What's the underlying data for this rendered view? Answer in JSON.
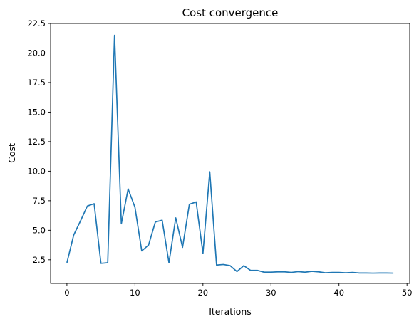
{
  "chart_data": {
    "type": "line",
    "title": "Cost convergence",
    "xlabel": "Iterations",
    "ylabel": "Cost",
    "xlim": [
      -2.4,
      50.4
    ],
    "ylim": [
      0.5,
      22.5
    ],
    "xticks": [
      0,
      10,
      20,
      30,
      40,
      50
    ],
    "yticks": [
      2.5,
      5.0,
      7.5,
      10.0,
      12.5,
      15.0,
      17.5,
      20.0,
      22.5
    ],
    "xtick_labels": [
      "0",
      "10",
      "20",
      "30",
      "40",
      "50"
    ],
    "ytick_labels": [
      "2.5",
      "5.0",
      "7.5",
      "10.0",
      "12.5",
      "15.0",
      "17.5",
      "20.0",
      "22.5"
    ],
    "grid": false,
    "series": [
      {
        "color": "#1f77b4",
        "x": [
          0,
          1,
          2,
          3,
          4,
          5,
          6,
          7,
          8,
          9,
          10,
          11,
          12,
          13,
          14,
          15,
          16,
          17,
          18,
          19,
          20,
          21,
          22,
          23,
          24,
          25,
          26,
          27,
          28,
          29,
          30,
          31,
          32,
          33,
          34,
          35,
          36,
          37,
          38,
          39,
          40,
          41,
          42,
          43,
          44,
          45,
          46,
          47,
          48
        ],
        "values": [
          2.25,
          4.6,
          5.8,
          7.05,
          7.25,
          2.2,
          2.25,
          21.5,
          5.55,
          8.5,
          6.95,
          3.25,
          3.75,
          5.7,
          5.85,
          2.25,
          6.05,
          3.55,
          7.2,
          7.4,
          3.05,
          9.95,
          2.05,
          2.1,
          2.0,
          1.5,
          2.0,
          1.6,
          1.6,
          1.45,
          1.45,
          1.48,
          1.48,
          1.43,
          1.5,
          1.45,
          1.52,
          1.48,
          1.4,
          1.43,
          1.43,
          1.4,
          1.43,
          1.38,
          1.38,
          1.37,
          1.38,
          1.38,
          1.37
        ]
      }
    ]
  }
}
